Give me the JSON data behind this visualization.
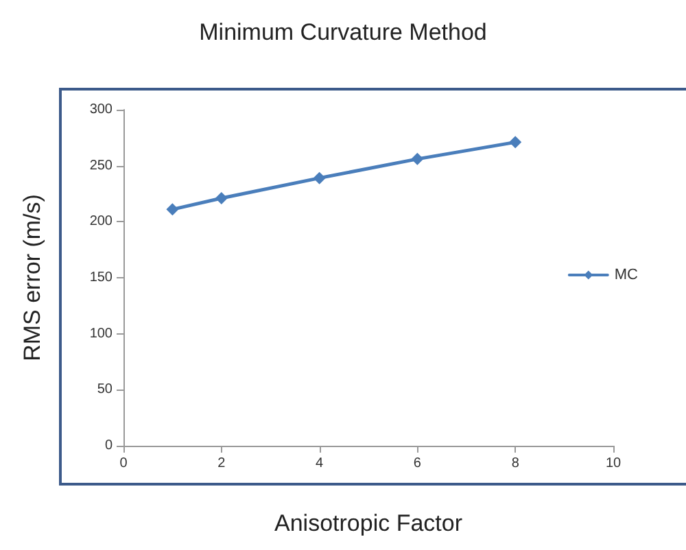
{
  "chart_data": {
    "type": "line",
    "title": "Minimum Curvature Method",
    "xlabel": "Anisotropic Factor",
    "ylabel": "RMS error (m/s)",
    "x": [
      1,
      2,
      4,
      6,
      8
    ],
    "series": [
      {
        "name": "MC",
        "color": "#4a7ebb",
        "values": [
          211,
          221,
          239,
          256,
          271
        ]
      }
    ],
    "xlim": [
      0,
      10
    ],
    "xticks": [
      0,
      2,
      4,
      6,
      8,
      10
    ],
    "ylim": [
      0,
      300
    ],
    "yticks": [
      0,
      50,
      100,
      150,
      200,
      250,
      300
    ],
    "grid": false,
    "legend": "right",
    "marker": "diamond",
    "line_style": "solid"
  }
}
